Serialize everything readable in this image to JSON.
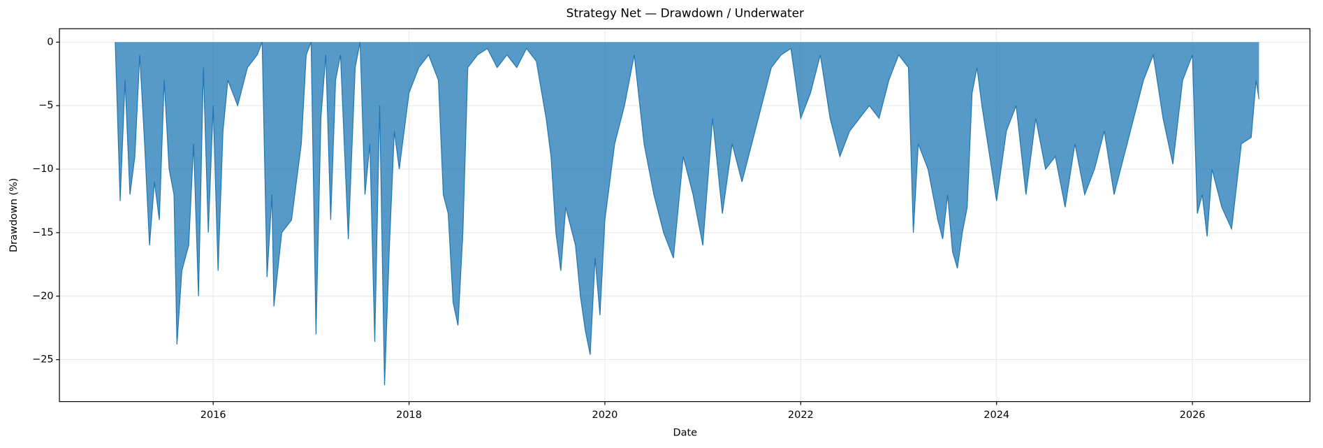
{
  "chart_data": {
    "type": "area",
    "title": "Strategy Net — Drawdown / Underwater",
    "xlabel": "Date",
    "ylabel": "Drawdown (%)",
    "x": [
      2015.0,
      2015.05,
      2015.1,
      2015.15,
      2015.2,
      2015.25,
      2015.3,
      2015.35,
      2015.4,
      2015.45,
      2015.5,
      2015.55,
      2015.6,
      2015.63,
      2015.68,
      2015.75,
      2015.8,
      2015.85,
      2015.9,
      2015.95,
      2016.0,
      2016.05,
      2016.1,
      2016.15,
      2016.25,
      2016.35,
      2016.45,
      2016.5,
      2016.55,
      2016.6,
      2016.62,
      2016.7,
      2016.8,
      2016.9,
      2016.95,
      2017.0,
      2017.05,
      2017.1,
      2017.15,
      2017.2,
      2017.25,
      2017.3,
      2017.38,
      2017.45,
      2017.5,
      2017.55,
      2017.6,
      2017.65,
      2017.7,
      2017.75,
      2017.8,
      2017.85,
      2017.9,
      2018.0,
      2018.1,
      2018.2,
      2018.3,
      2018.35,
      2018.4,
      2018.45,
      2018.5,
      2018.55,
      2018.6,
      2018.7,
      2018.8,
      2018.9,
      2019.0,
      2019.1,
      2019.2,
      2019.3,
      2019.4,
      2019.45,
      2019.5,
      2019.55,
      2019.6,
      2019.7,
      2019.75,
      2019.8,
      2019.85,
      2019.9,
      2019.95,
      2020.0,
      2020.1,
      2020.2,
      2020.3,
      2020.4,
      2020.5,
      2020.6,
      2020.7,
      2020.8,
      2020.9,
      2021.0,
      2021.1,
      2021.2,
      2021.3,
      2021.4,
      2021.5,
      2021.6,
      2021.7,
      2021.8,
      2021.9,
      2022.0,
      2022.1,
      2022.2,
      2022.3,
      2022.4,
      2022.5,
      2022.6,
      2022.7,
      2022.8,
      2022.9,
      2023.0,
      2023.1,
      2023.15,
      2023.2,
      2023.3,
      2023.4,
      2023.45,
      2023.5,
      2023.55,
      2023.6,
      2023.65,
      2023.7,
      2023.75,
      2023.8,
      2023.85,
      2024.0,
      2024.1,
      2024.2,
      2024.3,
      2024.4,
      2024.5,
      2024.6,
      2024.7,
      2024.8,
      2024.9,
      2025.0,
      2025.1,
      2025.2,
      2025.3,
      2025.4,
      2025.5,
      2025.6,
      2025.7,
      2025.8,
      2025.9,
      2026.0,
      2026.05,
      2026.1,
      2026.15,
      2026.2,
      2026.3,
      2026.4,
      2026.5,
      2026.6,
      2026.65,
      2026.68
    ],
    "values": [
      0,
      -12.5,
      -3,
      -12,
      -9,
      -1,
      -8,
      -16,
      -11,
      -14,
      -3,
      -10,
      -12,
      -23.8,
      -18,
      -16,
      -8,
      -20,
      -2,
      -15,
      -5,
      -18,
      -7,
      -3,
      -5,
      -2,
      -1,
      0,
      -18.5,
      -12,
      -20.8,
      -15,
      -14,
      -8,
      -1,
      0,
      -23,
      -6,
      -1,
      -14,
      -3,
      -1,
      -15.5,
      -2,
      0,
      -12,
      -8,
      -23.6,
      -5,
      -27,
      -16,
      -7,
      -10,
      -4,
      -2,
      -1,
      -3,
      -12,
      -13.5,
      -20.5,
      -22.3,
      -15,
      -2,
      -1,
      -0.5,
      -2,
      -1,
      -2,
      -0.5,
      -1.5,
      -6,
      -9,
      -15,
      -18,
      -13,
      -16,
      -20,
      -22.7,
      -24.6,
      -17,
      -21.5,
      -14,
      -8,
      -5,
      -1,
      -8,
      -12,
      -15,
      -17,
      -9,
      -12,
      -16,
      -6,
      -13.5,
      -8,
      -11,
      -8,
      -5,
      -2,
      -1,
      -0.5,
      -6,
      -4,
      -1,
      -6,
      -9,
      -7,
      -6,
      -5,
      -6,
      -3,
      -1,
      -2,
      -15,
      -8,
      -10,
      -14,
      -15.5,
      -12,
      -16.5,
      -17.8,
      -15,
      -13,
      -4,
      -2,
      -5,
      -12.5,
      -7,
      -5,
      -12,
      -6,
      -10,
      -9,
      -13,
      -8,
      -12,
      -10,
      -7,
      -12,
      -9,
      -6,
      -3,
      -1,
      -6,
      -9.6,
      -3,
      -1,
      -13.5,
      -12,
      -15.3,
      -10,
      -13,
      -14.7,
      -8,
      -7.5,
      -3,
      -4.5
    ],
    "color": "#1f77b4",
    "xlim": [
      2014.43,
      2027.2
    ],
    "xticks": [
      2016,
      2018,
      2020,
      2022,
      2024,
      2026
    ],
    "ylim": [
      -28.3,
      1.06
    ],
    "yticks": [
      {
        "value": -25,
        "label": "−25"
      },
      {
        "value": -20,
        "label": "−20"
      },
      {
        "value": -15,
        "label": "−15"
      },
      {
        "value": -10,
        "label": "−10"
      },
      {
        "value": -5,
        "label": "−5"
      },
      0
    ],
    "grid": true
  }
}
